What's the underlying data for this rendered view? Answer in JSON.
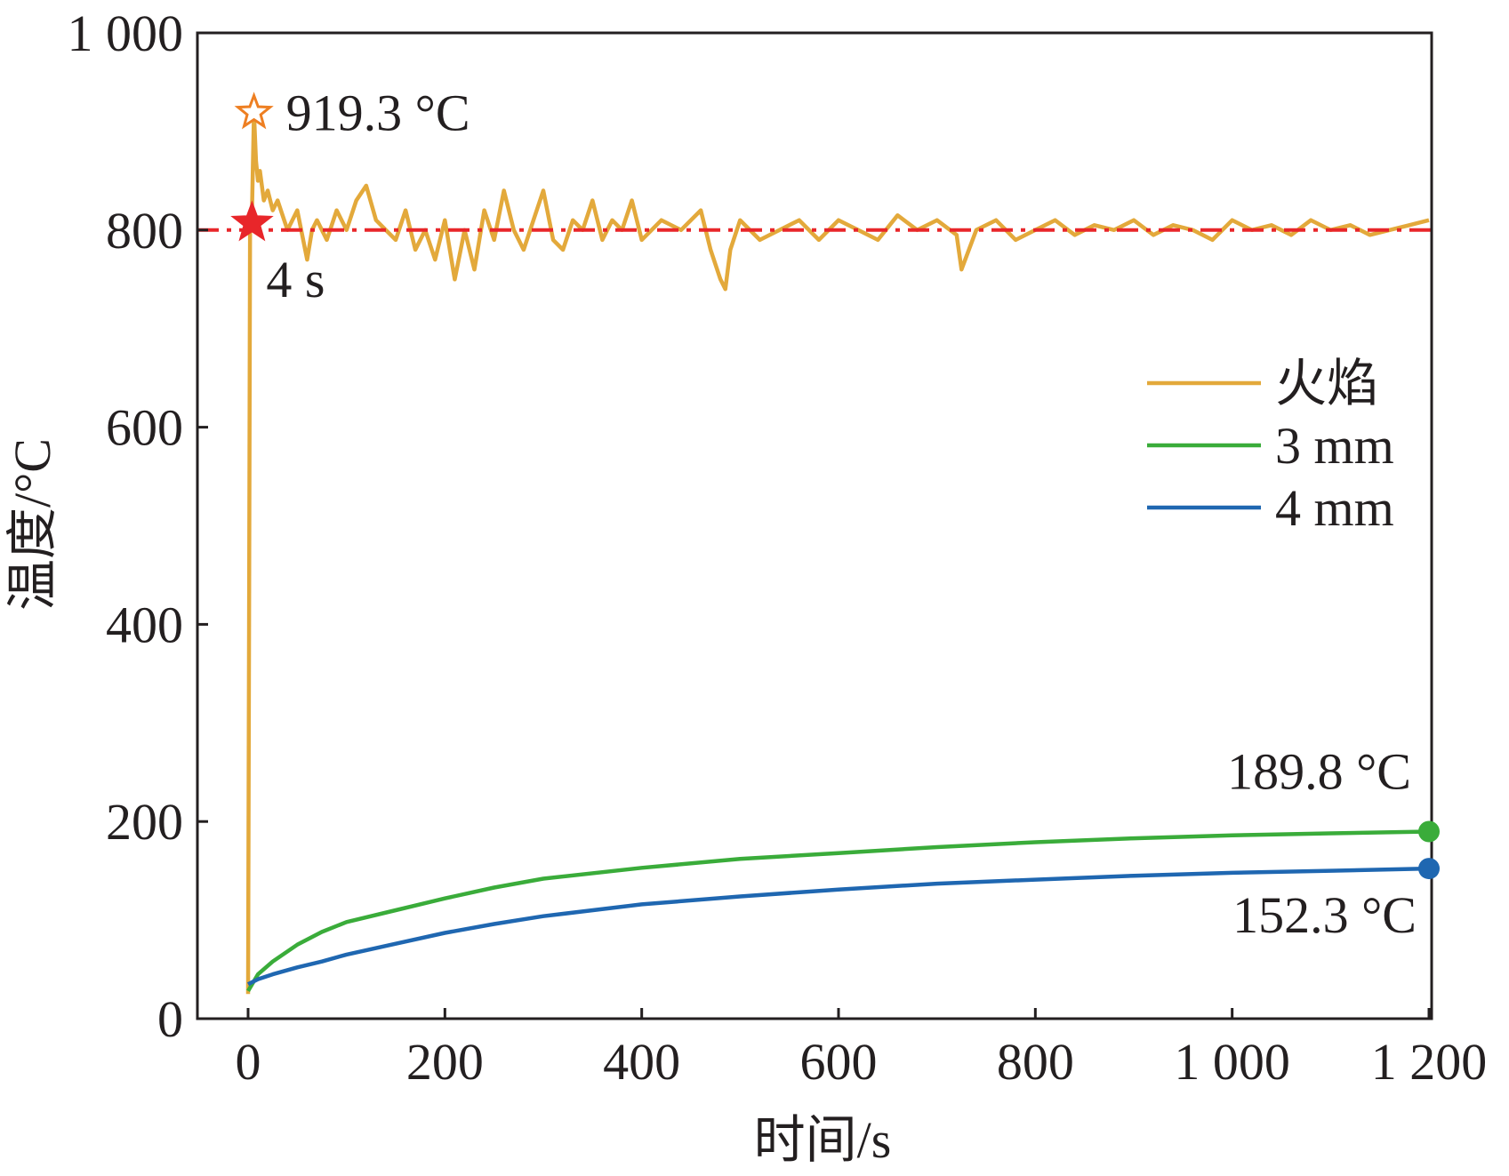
{
  "chart_data": {
    "type": "line",
    "xlabel": "时间/s",
    "ylabel": "温度/°C",
    "xlim": [
      0,
      1200
    ],
    "ylim": [
      0,
      1000
    ],
    "x_ticks": [
      0,
      200,
      400,
      600,
      800,
      1000,
      1200
    ],
    "x_tick_labels": [
      "0",
      "200",
      "400",
      "600",
      "800",
      "1 000",
      "1 200"
    ],
    "y_ticks": [
      0,
      200,
      400,
      600,
      800,
      1000
    ],
    "y_tick_labels": [
      "0",
      "200",
      "400",
      "600",
      "800",
      "1 000"
    ],
    "grid": false,
    "legend_position": "right",
    "reference_line": {
      "y": 800,
      "style": "dash-dot",
      "color": "#e8262a"
    },
    "series": [
      {
        "name": "火焰",
        "color": "#e3a93b",
        "x": [
          0,
          1,
          2,
          4,
          6,
          8,
          10,
          12,
          16,
          20,
          25,
          30,
          40,
          50,
          60,
          65,
          70,
          80,
          90,
          100,
          110,
          120,
          130,
          140,
          150,
          160,
          170,
          180,
          190,
          200,
          210,
          220,
          230,
          240,
          250,
          260,
          270,
          280,
          290,
          300,
          310,
          320,
          330,
          340,
          350,
          360,
          370,
          380,
          390,
          400,
          420,
          440,
          460,
          470,
          480,
          485,
          490,
          500,
          520,
          540,
          560,
          580,
          600,
          620,
          640,
          660,
          680,
          700,
          720,
          725,
          740,
          760,
          780,
          800,
          820,
          840,
          860,
          880,
          900,
          920,
          940,
          960,
          980,
          1000,
          1020,
          1040,
          1060,
          1080,
          1100,
          1120,
          1140,
          1160,
          1180,
          1200
        ],
        "y": [
          25,
          400,
          800,
          820,
          919.3,
          870,
          850,
          860,
          830,
          840,
          820,
          830,
          800,
          820,
          770,
          800,
          810,
          790,
          820,
          800,
          830,
          845,
          810,
          800,
          790,
          820,
          780,
          800,
          770,
          810,
          750,
          800,
          760,
          820,
          790,
          840,
          800,
          780,
          810,
          840,
          790,
          780,
          810,
          800,
          830,
          790,
          810,
          800,
          830,
          790,
          810,
          800,
          820,
          780,
          750,
          740,
          780,
          810,
          790,
          800,
          810,
          790,
          810,
          800,
          790,
          815,
          800,
          810,
          795,
          760,
          800,
          810,
          790,
          800,
          810,
          795,
          805,
          800,
          810,
          795,
          805,
          800,
          790,
          810,
          800,
          805,
          795,
          810,
          800,
          805,
          795,
          800,
          805,
          810
        ]
      },
      {
        "name": "3 mm",
        "color": "#3aac3a",
        "x": [
          0,
          10,
          25,
          50,
          75,
          100,
          150,
          200,
          250,
          300,
          400,
          500,
          600,
          700,
          800,
          900,
          1000,
          1100,
          1200
        ],
        "y": [
          28,
          45,
          58,
          75,
          88,
          98,
          110,
          122,
          133,
          142,
          153,
          162,
          168,
          174,
          179,
          183,
          186,
          188,
          189.8
        ]
      },
      {
        "name": "4 mm",
        "color": "#1f67b1",
        "x": [
          0,
          10,
          25,
          50,
          75,
          100,
          150,
          200,
          250,
          300,
          400,
          500,
          600,
          700,
          800,
          900,
          1000,
          1100,
          1200
        ],
        "y": [
          35,
          40,
          45,
          52,
          58,
          65,
          76,
          87,
          96,
          104,
          116,
          124,
          131,
          137,
          141,
          145,
          148,
          150,
          152.3
        ]
      }
    ],
    "annotations": [
      {
        "text": "919.3 °C",
        "x": 6,
        "y": 919.3,
        "marker": "hollow-star",
        "color": "#ee7f22"
      },
      {
        "text": "4 s",
        "x": 4,
        "y": 800,
        "marker": "filled-star",
        "color": "#e8262a"
      },
      {
        "text": "189.8 °C",
        "x": 1200,
        "y": 189.8,
        "marker": "dot",
        "color": "#3aac3a"
      },
      {
        "text": "152.3 °C",
        "x": 1200,
        "y": 152.3,
        "marker": "dot",
        "color": "#1f67b1"
      }
    ]
  }
}
